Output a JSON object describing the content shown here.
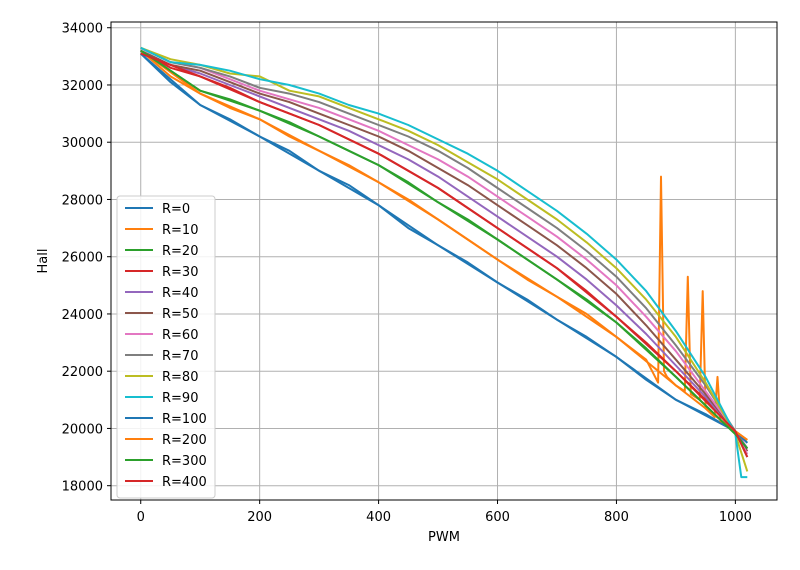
{
  "chart_data": {
    "type": "line",
    "title": "",
    "xlabel": "PWM",
    "ylabel": "Hall",
    "xlim": [
      -50,
      1070
    ],
    "ylim": [
      17500,
      34200
    ],
    "xticks": [
      0,
      200,
      400,
      600,
      800,
      1000
    ],
    "yticks": [
      18000,
      20000,
      22000,
      24000,
      26000,
      28000,
      30000,
      32000,
      34000
    ],
    "xtick_labels": [
      "0",
      "200",
      "400",
      "600",
      "800",
      "1000"
    ],
    "ytick_labels": [
      "18000",
      "20000",
      "22000",
      "24000",
      "26000",
      "28000",
      "30000",
      "32000",
      "34000"
    ],
    "grid": true,
    "legend_position": "lower-left",
    "series": [
      {
        "name": "R=0",
        "color": "#1f77b4",
        "x": [
          0,
          50,
          100,
          150,
          200,
          250,
          300,
          350,
          400,
          450,
          500,
          550,
          600,
          650,
          700,
          750,
          800,
          850,
          900,
          950,
          1000,
          1020
        ],
        "y": [
          33100,
          32100,
          31300,
          30800,
          30200,
          29700,
          29000,
          28500,
          27800,
          27000,
          26400,
          25800,
          25100,
          24500,
          23800,
          23200,
          22500,
          21700,
          21000,
          20500,
          19900,
          19500
        ]
      },
      {
        "name": "R=10",
        "color": "#ff7f0e",
        "x": [
          0,
          50,
          100,
          150,
          200,
          250,
          300,
          350,
          400,
          450,
          500,
          550,
          600,
          650,
          700,
          750,
          800,
          850,
          870,
          875,
          880,
          885,
          900,
          915,
          920,
          925,
          940,
          945,
          950,
          955,
          965,
          970,
          975,
          1000,
          1020
        ],
        "y": [
          33200,
          32300,
          31700,
          31200,
          30800,
          30200,
          29700,
          29200,
          28600,
          28000,
          27300,
          26600,
          25900,
          25200,
          24600,
          24000,
          23200,
          22400,
          21600,
          28800,
          22000,
          21800,
          21500,
          21300,
          25300,
          21200,
          21000,
          24800,
          20700,
          20600,
          20400,
          21800,
          20200,
          19900,
          19600
        ]
      },
      {
        "name": "R=20",
        "color": "#2ca02c",
        "x": [
          0,
          50,
          100,
          150,
          200,
          250,
          300,
          350,
          400,
          450,
          500,
          550,
          600,
          650,
          700,
          750,
          800,
          850,
          900,
          950,
          1000,
          1020
        ],
        "y": [
          33200,
          32500,
          31800,
          31500,
          31100,
          30700,
          30200,
          29700,
          29200,
          28600,
          27900,
          27300,
          26600,
          25900,
          25200,
          24500,
          23700,
          22800,
          21800,
          20800,
          19800,
          19300
        ]
      },
      {
        "name": "R=30",
        "color": "#d62728",
        "x": [
          0,
          50,
          100,
          150,
          200,
          250,
          300,
          350,
          400,
          450,
          500,
          550,
          600,
          650,
          700,
          750,
          800,
          850,
          900,
          950,
          1000,
          1020
        ],
        "y": [
          33200,
          32600,
          32300,
          31900,
          31400,
          31000,
          30600,
          30100,
          29600,
          29000,
          28400,
          27700,
          27000,
          26300,
          25600,
          24800,
          23900,
          23000,
          22000,
          21000,
          19900,
          19300
        ]
      },
      {
        "name": "R=40",
        "color": "#9467bd",
        "x": [
          0,
          50,
          100,
          150,
          200,
          250,
          300,
          350,
          400,
          450,
          500,
          550,
          600,
          650,
          700,
          750,
          800,
          850,
          900,
          950,
          1000,
          1020
        ],
        "y": [
          33200,
          32700,
          32400,
          32000,
          31600,
          31200,
          30800,
          30400,
          29900,
          29400,
          28800,
          28100,
          27400,
          26700,
          26000,
          25200,
          24300,
          23300,
          22200,
          21100,
          19900,
          19300
        ]
      },
      {
        "name": "R=50",
        "color": "#8c564b",
        "x": [
          0,
          50,
          100,
          150,
          200,
          250,
          300,
          350,
          400,
          450,
          500,
          550,
          600,
          650,
          700,
          750,
          800,
          850,
          900,
          950,
          1000,
          1020
        ],
        "y": [
          33200,
          32700,
          32500,
          32100,
          31700,
          31400,
          31000,
          30600,
          30200,
          29700,
          29100,
          28500,
          27800,
          27100,
          26400,
          25600,
          24700,
          23600,
          22400,
          21200,
          19900,
          19200
        ]
      },
      {
        "name": "R=60",
        "color": "#e377c2",
        "x": [
          0,
          50,
          100,
          150,
          200,
          250,
          300,
          350,
          400,
          450,
          500,
          550,
          600,
          650,
          700,
          750,
          800,
          850,
          900,
          950,
          1000,
          1020
        ],
        "y": [
          33300,
          32800,
          32600,
          32200,
          31800,
          31500,
          31200,
          30800,
          30400,
          29900,
          29400,
          28800,
          28100,
          27400,
          26700,
          25900,
          25000,
          23900,
          22700,
          21300,
          19900,
          19100
        ]
      },
      {
        "name": "R=70",
        "color": "#7f7f7f",
        "x": [
          0,
          50,
          100,
          150,
          200,
          250,
          300,
          350,
          400,
          450,
          500,
          550,
          600,
          650,
          700,
          750,
          800,
          850,
          900,
          950,
          1000,
          1020
        ],
        "y": [
          33300,
          32800,
          32600,
          32300,
          31900,
          31700,
          31400,
          31000,
          30600,
          30200,
          29700,
          29100,
          28400,
          27700,
          27000,
          26200,
          25300,
          24200,
          22900,
          21500,
          19900,
          19000
        ]
      },
      {
        "name": "R=80",
        "color": "#bcbd22",
        "x": [
          0,
          50,
          100,
          150,
          200,
          250,
          300,
          350,
          400,
          450,
          500,
          550,
          600,
          650,
          700,
          750,
          800,
          850,
          900,
          950,
          1000,
          1020
        ],
        "y": [
          33300,
          32900,
          32700,
          32400,
          32300,
          31800,
          31600,
          31200,
          30800,
          30400,
          29900,
          29300,
          28700,
          28000,
          27300,
          26500,
          25600,
          24500,
          23200,
          21600,
          19800,
          18500
        ]
      },
      {
        "name": "R=90",
        "color": "#17becf",
        "x": [
          0,
          50,
          100,
          150,
          200,
          250,
          300,
          350,
          400,
          450,
          500,
          550,
          600,
          650,
          700,
          750,
          800,
          850,
          900,
          950,
          1000,
          1010,
          1020
        ],
        "y": [
          33300,
          32800,
          32700,
          32500,
          32200,
          32000,
          31700,
          31300,
          31000,
          30600,
          30100,
          29600,
          29000,
          28300,
          27600,
          26800,
          25900,
          24800,
          23400,
          21800,
          19800,
          18300,
          18300
        ]
      },
      {
        "name": "R=100",
        "color": "#1f77b4",
        "x": [
          0,
          100,
          200,
          300,
          400,
          500,
          600,
          700,
          800,
          900,
          1000,
          1020
        ],
        "y": [
          33100,
          31300,
          30200,
          29000,
          27800,
          26400,
          25100,
          23800,
          22500,
          21000,
          19900,
          19500
        ]
      },
      {
        "name": "R=200",
        "color": "#ff7f0e",
        "x": [
          0,
          100,
          200,
          300,
          400,
          500,
          600,
          700,
          800,
          900,
          1000,
          1020
        ],
        "y": [
          33200,
          31700,
          30800,
          29700,
          28600,
          27300,
          25900,
          24600,
          23200,
          21500,
          19900,
          19600
        ]
      },
      {
        "name": "R=300",
        "color": "#2ca02c",
        "x": [
          0,
          100,
          200,
          300,
          400,
          500,
          600,
          700,
          800,
          900,
          1000,
          1020
        ],
        "y": [
          33200,
          31800,
          31100,
          30200,
          29200,
          27900,
          26600,
          25200,
          23700,
          21800,
          19800,
          19300
        ]
      },
      {
        "name": "R=400",
        "color": "#d62728",
        "x": [
          0,
          100,
          200,
          300,
          400,
          500,
          600,
          700,
          800,
          900,
          1000,
          1020
        ],
        "y": [
          33100,
          32300,
          31400,
          30600,
          29600,
          28400,
          27000,
          25600,
          23900,
          22000,
          19900,
          19000
        ]
      }
    ]
  }
}
